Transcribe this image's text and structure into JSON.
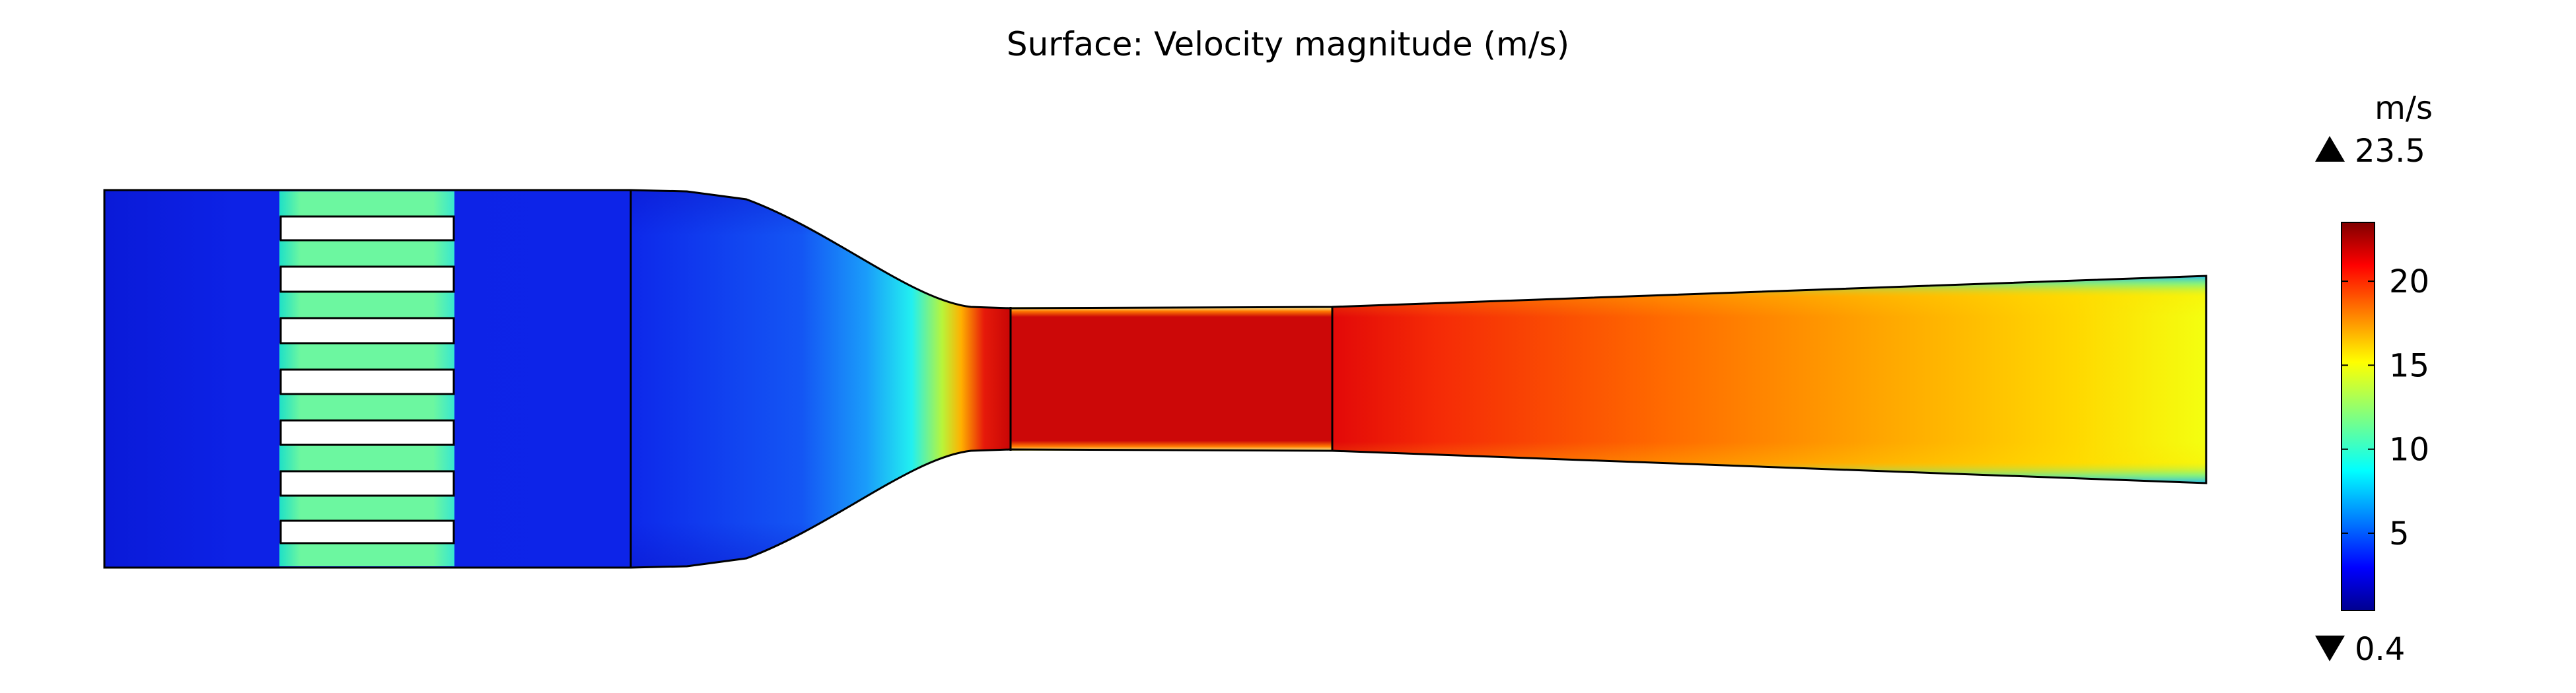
{
  "title": "Surface: Velocity magnitude (m/s)",
  "colorbar": {
    "unit": "m/s",
    "max_label": "23.5",
    "min_label": "0.4",
    "max": 23.5,
    "min": 0.4,
    "ticks": [
      {
        "value": 5,
        "label": "5"
      },
      {
        "value": 10,
        "label": "10"
      },
      {
        "value": 15,
        "label": "15"
      },
      {
        "value": 20,
        "label": "20"
      }
    ],
    "colormap": "rainbow (jet)"
  }
}
